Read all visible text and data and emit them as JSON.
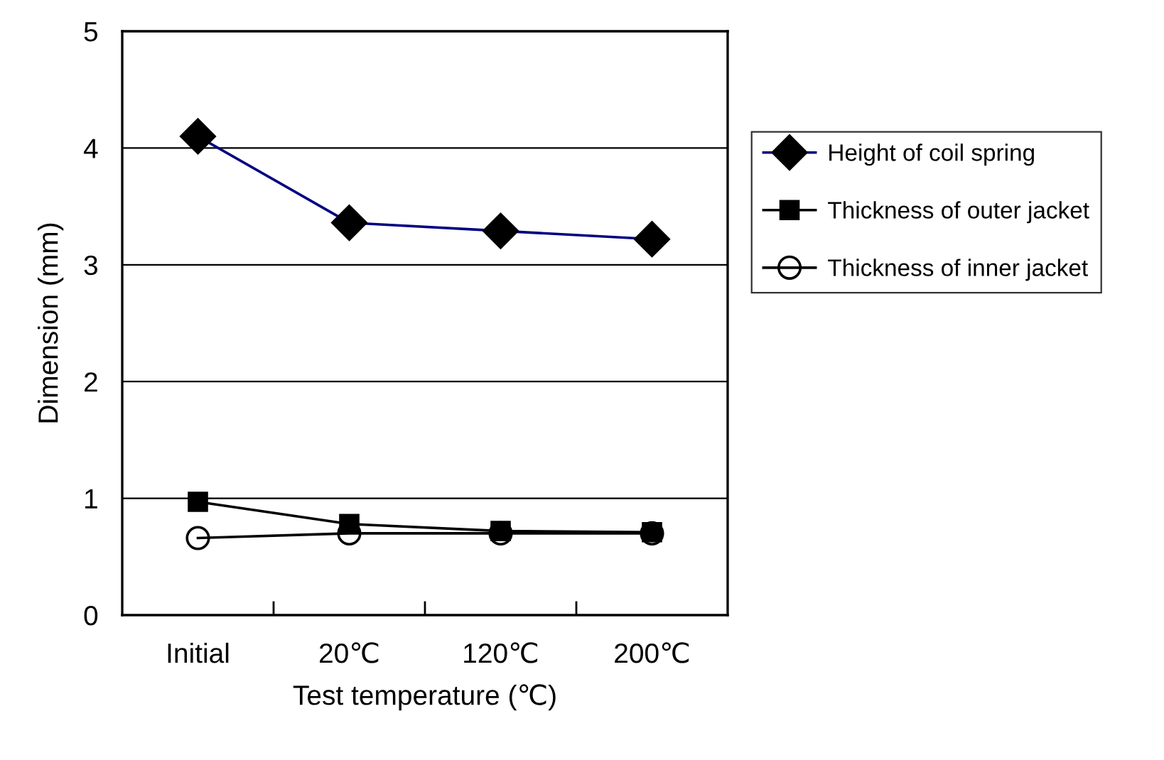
{
  "chart_data": {
    "type": "line",
    "xlabel": "Test temperature (℃)",
    "ylabel": "Dimension (mm)",
    "categories": [
      "Initial",
      "20℃",
      "120℃",
      "200℃"
    ],
    "series": [
      {
        "name": "Height of coil spring",
        "color": "#000080",
        "marker": "diamond",
        "values": [
          4.1,
          3.36,
          3.29,
          3.22
        ]
      },
      {
        "name": "Thickness of outer jacket",
        "color": "#000000",
        "marker": "square",
        "values": [
          0.97,
          0.78,
          0.72,
          0.71
        ]
      },
      {
        "name": "Thickness of inner jacket",
        "color": "#000000",
        "marker": "circle",
        "values": [
          0.66,
          0.7,
          0.7,
          0.7
        ]
      }
    ],
    "ylim": [
      0,
      5
    ],
    "yticks": [
      0,
      1,
      2,
      3,
      4,
      5
    ],
    "grid": "y",
    "legend": "right",
    "line_style": "solid"
  }
}
